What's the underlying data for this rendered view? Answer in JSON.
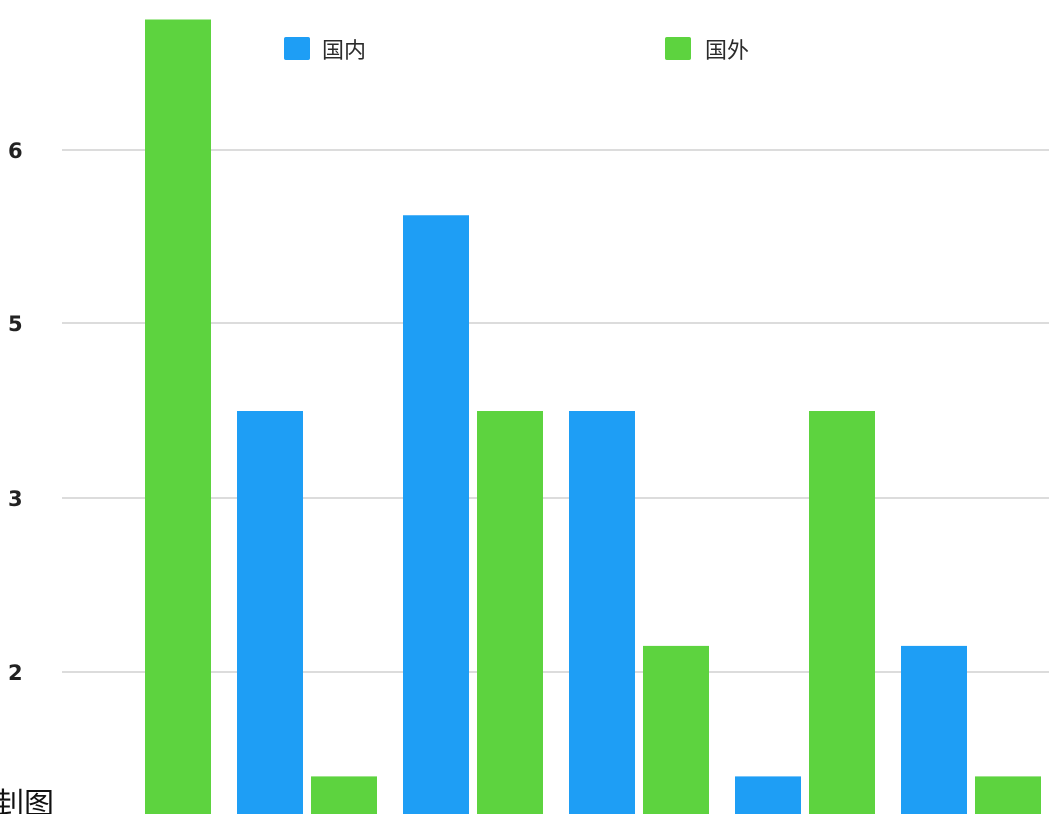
{
  "chart_data": {
    "type": "bar",
    "categories": [
      "",
      "",
      "",
      "",
      "",
      ""
    ],
    "series": [
      {
        "name": "国内",
        "color": "#1E9EF5",
        "values": [
          0,
          4,
          5.5,
          4,
          1.2,
          2.2
        ]
      },
      {
        "name": "国外",
        "color": "#5DD33F",
        "values": [
          7,
          1.2,
          4,
          2.2,
          4,
          1.2
        ]
      }
    ],
    "y_ticks": [
      "6",
      "5",
      "3",
      "2"
    ],
    "grid": true,
    "legend_position": "top",
    "corner_text": "刲图"
  }
}
